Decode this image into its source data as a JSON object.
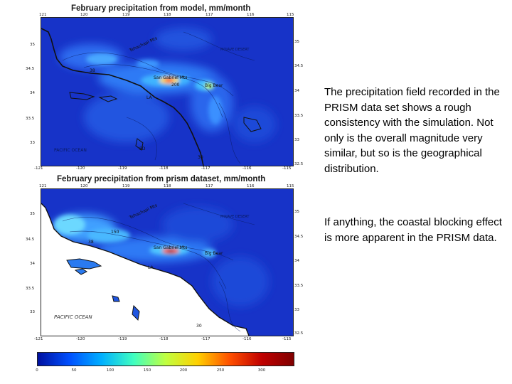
{
  "top_map": {
    "title": "February precipitation from model, mm/month",
    "lon_ticks": [
      "121",
      "120",
      "119",
      "118",
      "117",
      "116",
      "115"
    ],
    "lon_ticks_bottom": [
      "-121",
      "-120",
      "-119",
      "-118",
      "-117",
      "-116",
      "-115"
    ],
    "lat_ticks_left": [
      "35",
      "34.5",
      "34",
      "33.5",
      "33"
    ],
    "lat_ticks_right": [
      "35",
      "34.5",
      "34",
      "33.5",
      "33",
      "32.5"
    ],
    "labels": {
      "san_gabriel": "San Gabriel Mts",
      "big_bear": "Big Bear",
      "tehachapi": "Tehachapi Mts",
      "mojave": "MOJAVE DESERT",
      "ocean": "PACIFIC OCEAN",
      "c38": "38",
      "c200": "200",
      "c30": "30",
      "la": "LA",
      "sd": "SD"
    }
  },
  "bottom_map": {
    "title": "February precipitation from prism dataset, mm/month",
    "lon_ticks": [
      "121",
      "120",
      "119",
      "118",
      "117",
      "116",
      "115"
    ],
    "lon_ticks_bottom": [
      "-121",
      "-120",
      "-119",
      "-118",
      "-117",
      "-116",
      "-115"
    ],
    "lat_ticks_left": [
      "35",
      "34.5",
      "34",
      "33.5",
      "33"
    ],
    "lat_ticks_right": [
      "35",
      "34.5",
      "34",
      "33.5",
      "33",
      "32.5"
    ],
    "labels": {
      "san_gabriel": "San Gabriel Mts",
      "big_bear": "Big Bear",
      "tehachapi": "Tehachapi Mts",
      "mojave": "MOJAVE DESERT",
      "ocean": "PACIFIC OCEAN",
      "c150": "150",
      "c38": "38",
      "c30": "30",
      "la": "LA"
    }
  },
  "colorbar": {
    "ticks": [
      "0",
      "50",
      "100",
      "150",
      "200",
      "250",
      "300"
    ],
    "colors": [
      "#0010a0",
      "#0050ff",
      "#00b0ff",
      "#40ffc0",
      "#c0ff40",
      "#ffd000",
      "#ff5000",
      "#c00000",
      "#800000"
    ]
  },
  "text": {
    "paragraph1": "The precipitation field recorded in the PRISM data set shows a rough consistency with the simulation.  Not only is the overall magnitude very similar, but so is the geographical distribution.",
    "paragraph2": "If anything, the coastal blocking effect is more apparent in the PRISM data."
  }
}
